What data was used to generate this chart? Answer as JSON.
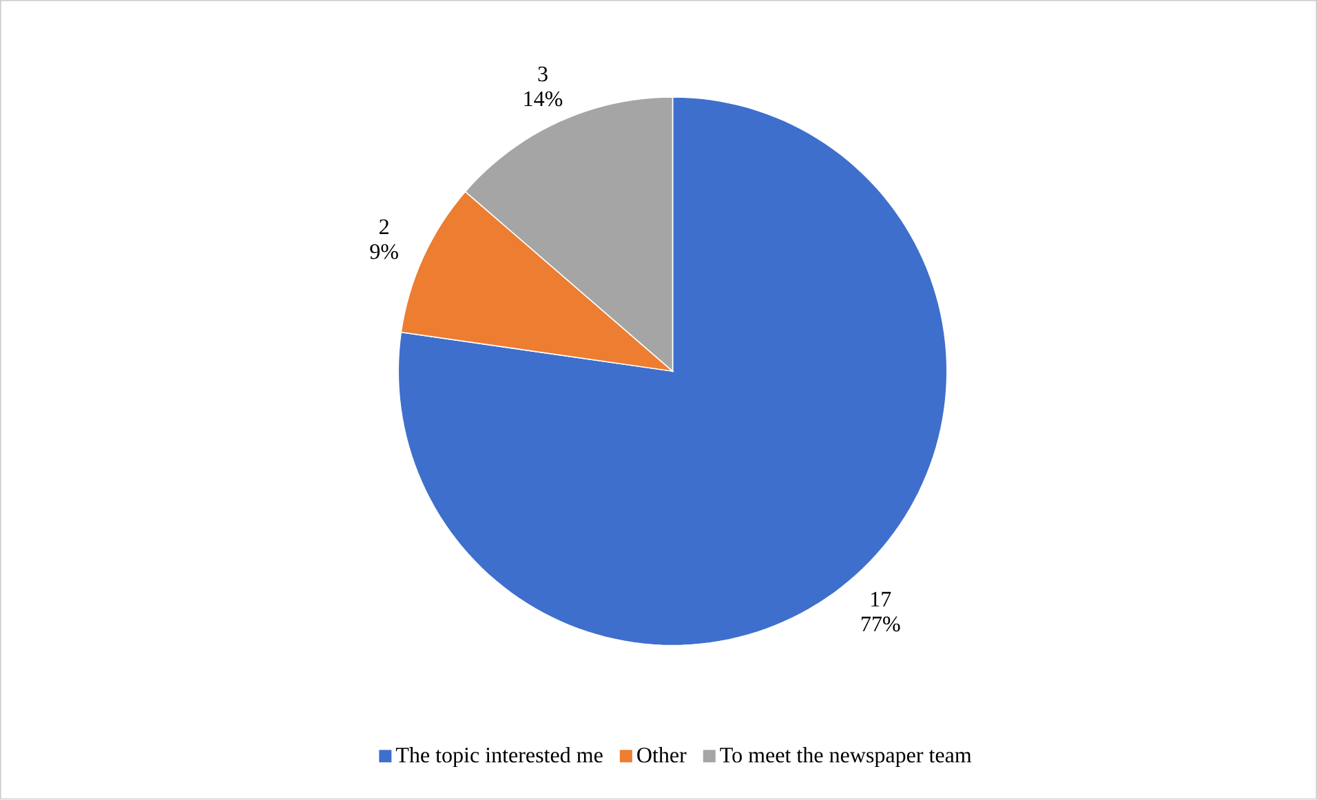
{
  "chart_data": {
    "type": "pie",
    "categories": [
      "The topic interested me",
      "Other",
      "To meet the newspaper team"
    ],
    "values": [
      17,
      2,
      3
    ],
    "colors": [
      "#3f6fcc",
      "#ed7d31",
      "#a5a5a5"
    ],
    "value_labels": [
      "17 77%",
      "2 9%",
      "3 14%"
    ],
    "legend": "bottom"
  }
}
